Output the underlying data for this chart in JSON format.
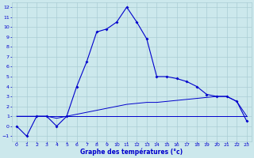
{
  "title": "Graphe des températures (°c)",
  "background_color": "#cce8ec",
  "grid_color": "#aacdd4",
  "line_color": "#0000cc",
  "xlim": [
    -0.5,
    23.5
  ],
  "ylim": [
    -1.5,
    12.5
  ],
  "xticks": [
    0,
    1,
    2,
    3,
    4,
    5,
    6,
    7,
    8,
    9,
    10,
    11,
    12,
    13,
    14,
    15,
    16,
    17,
    18,
    19,
    20,
    21,
    22,
    23
  ],
  "yticks": [
    -1,
    0,
    1,
    2,
    3,
    4,
    5,
    6,
    7,
    8,
    9,
    10,
    11,
    12
  ],
  "line1_x": [
    0,
    1,
    2,
    3,
    4,
    5,
    6,
    7,
    8,
    9,
    10,
    11,
    12,
    13,
    14,
    15,
    16,
    17,
    18,
    19,
    20,
    21,
    22,
    23
  ],
  "line1_y": [
    0,
    -1,
    1,
    1,
    0,
    1,
    4,
    6.5,
    9.5,
    9.8,
    10.5,
    12,
    10.5,
    8.8,
    5,
    5,
    4.8,
    4.5,
    4,
    3.2,
    3.0,
    3.0,
    2.5,
    0.5
  ],
  "line2_x": [
    0,
    1,
    2,
    3,
    4,
    5,
    6,
    7,
    8,
    9,
    10,
    11,
    12,
    13,
    14,
    15,
    16,
    17,
    18,
    19,
    20,
    21,
    22,
    23
  ],
  "line2_y": [
    1.0,
    1.0,
    1.0,
    1.0,
    0.8,
    1.0,
    1.2,
    1.4,
    1.6,
    1.8,
    2.0,
    2.2,
    2.3,
    2.4,
    2.4,
    2.5,
    2.6,
    2.7,
    2.8,
    2.9,
    3.0,
    3.0,
    2.5,
    1.0
  ],
  "line3_x": [
    0,
    1,
    2,
    3,
    4,
    5,
    6,
    7,
    8,
    9,
    10,
    11,
    12,
    13,
    14,
    15,
    16,
    17,
    18,
    19,
    20,
    21,
    22,
    23
  ],
  "line3_y": [
    1.0,
    1.0,
    1.0,
    1.0,
    1.0,
    1.0,
    1.0,
    1.0,
    1.0,
    1.0,
    1.0,
    1.0,
    1.0,
    1.0,
    1.0,
    1.0,
    1.0,
    1.0,
    1.0,
    1.0,
    1.0,
    1.0,
    1.0,
    1.0
  ]
}
